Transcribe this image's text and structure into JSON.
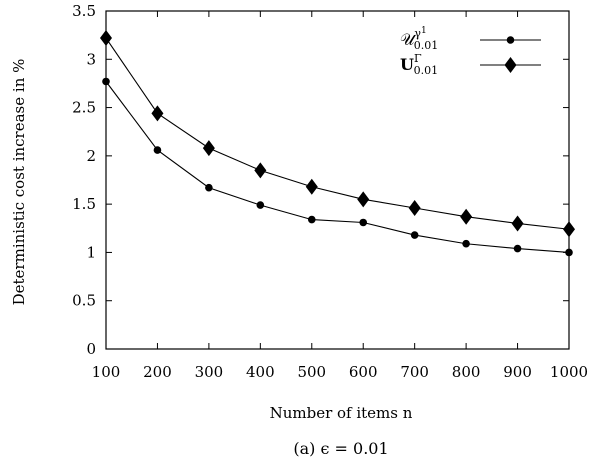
{
  "chart_data": {
    "type": "line",
    "xlabel": "Number of items n",
    "ylabel": "Deterministic cost increase in %",
    "caption": "(a) ϵ = 0.01",
    "x": [
      100,
      200,
      300,
      400,
      500,
      600,
      700,
      800,
      900,
      1000
    ],
    "xlim": [
      100,
      1000
    ],
    "ylim": [
      0,
      3.5
    ],
    "x_ticks": [
      "100",
      "200",
      "300",
      "400",
      "500",
      "600",
      "700",
      "800",
      "900",
      "1000"
    ],
    "y_ticks": [
      "0",
      "0.5",
      "1",
      "1.5",
      "2",
      "2.5",
      "3",
      "3.5"
    ],
    "legend_position": "top-right",
    "grid": false,
    "series": [
      {
        "name": "U^{γ^1}_{0.01}",
        "legend_main": "𝒰",
        "legend_sup": "γ",
        "legend_sup2": "1",
        "legend_sub": "0.01",
        "marker": "circle",
        "values": [
          2.77,
          2.06,
          1.67,
          1.49,
          1.34,
          1.31,
          1.18,
          1.09,
          1.04,
          1.0
        ]
      },
      {
        "name": "U^{Γ}_{0.01}",
        "legend_main": "U",
        "legend_sup": "Γ",
        "legend_sub": "0.01",
        "marker": "diamond",
        "values": [
          3.22,
          2.44,
          2.08,
          1.85,
          1.68,
          1.55,
          1.46,
          1.37,
          1.3,
          1.24
        ]
      }
    ]
  }
}
